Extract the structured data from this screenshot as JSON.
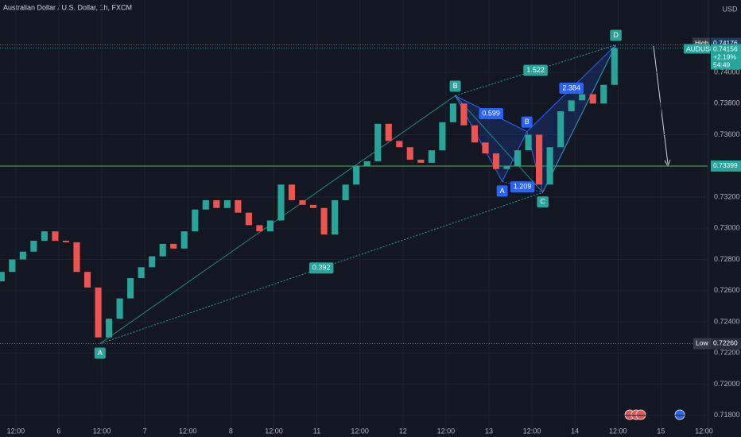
{
  "chart_data": {
    "type": "candlestick",
    "title": "Australian Dollar / U.S. Dollar, 1h, FXCM",
    "x": [
      -4,
      -1,
      2,
      5,
      8,
      11,
      14,
      17,
      20,
      23,
      26,
      29,
      32,
      35,
      38,
      41,
      44,
      47,
      50,
      53,
      56,
      59,
      62,
      65,
      68,
      71,
      74,
      77,
      80,
      83,
      86,
      89,
      92,
      95,
      98,
      101,
      104,
      107,
      110,
      113,
      116,
      119,
      122,
      125,
      128,
      131,
      134,
      137,
      140,
      143,
      146,
      149,
      152,
      155,
      158,
      161,
      164,
      167
    ],
    "open": [
      0.7266,
      0.7272,
      0.728,
      0.7285,
      0.7292,
      0.7298,
      0.7292,
      0.7291,
      0.7272,
      0.7262,
      0.723,
      0.7242,
      0.7255,
      0.7268,
      0.7275,
      0.7282,
      0.729,
      0.7287,
      0.7298,
      0.7312,
      0.7318,
      0.7313,
      0.7318,
      0.731,
      0.7302,
      0.7298,
      0.7305,
      0.7328,
      0.7318,
      0.7315,
      0.7313,
      0.7296,
      0.7318,
      0.7328,
      0.734,
      0.7343,
      0.7367,
      0.7356,
      0.7352,
      0.7344,
      0.7342,
      0.735,
      0.7368,
      0.738,
      0.7366,
      0.7355,
      0.7348,
      0.7338,
      0.734,
      0.735,
      0.736,
      0.7328,
      0.7352,
      0.7375,
      0.7382,
      0.7386,
      0.738,
      0.7392
    ],
    "high": 0.74176,
    "low": {
      "value": 0.7226,
      "label": "0.72260"
    },
    "close": [
      0.7272,
      0.728,
      0.7285,
      0.7292,
      0.7298,
      0.7292,
      0.7291,
      0.7272,
      0.7262,
      0.723,
      0.7242,
      0.7255,
      0.7268,
      0.7275,
      0.7282,
      0.729,
      0.7287,
      0.7298,
      0.7312,
      0.7318,
      0.7313,
      0.7318,
      0.731,
      0.7302,
      0.7298,
      0.7305,
      0.7328,
      0.7318,
      0.7315,
      0.7313,
      0.7296,
      0.7318,
      0.7328,
      0.734,
      0.7343,
      0.7367,
      0.7356,
      0.7352,
      0.7344,
      0.7342,
      0.735,
      0.7368,
      0.738,
      0.7366,
      0.7355,
      0.7348,
      0.7338,
      0.734,
      0.735,
      0.736,
      0.7328,
      0.7352,
      0.7375,
      0.7382,
      0.7386,
      0.738,
      0.7392,
      0.74156
    ],
    "up_color": "#26a69a",
    "down_color": "#ef5350",
    "xlim": [
      -4.4,
      193
    ],
    "xticks": [
      {
        "value": 0,
        "label": "12:00"
      },
      {
        "value": 12,
        "label": "6"
      },
      {
        "value": 24,
        "label": "12:00"
      },
      {
        "value": 36,
        "label": "7"
      },
      {
        "value": 48,
        "label": "12:00"
      },
      {
        "value": 60,
        "label": "8"
      },
      {
        "value": 72,
        "label": "12:00"
      },
      {
        "value": 84,
        "label": "11"
      },
      {
        "value": 96,
        "label": "12:00"
      },
      {
        "value": 108,
        "label": "12"
      },
      {
        "value": 120,
        "label": "12:00"
      },
      {
        "value": 132,
        "label": "13"
      },
      {
        "value": 144,
        "label": "12:00"
      },
      {
        "value": 156,
        "label": "14"
      },
      {
        "value": 168,
        "label": "12:00"
      },
      {
        "value": 180,
        "label": "15"
      },
      {
        "value": 192,
        "label": "12:00"
      }
    ],
    "ylim": [
      0.71712,
      0.74464
    ],
    "yticks": [
      {
        "value": 0.74,
        "label": "0.74000"
      },
      {
        "value": 0.738,
        "label": "0.73800"
      },
      {
        "value": 0.736,
        "label": "0.73600"
      },
      {
        "value": 0.734,
        "label": "0.73400"
      },
      {
        "value": 0.732,
        "label": "0.73200"
      },
      {
        "value": 0.73,
        "label": "0.73000"
      },
      {
        "value": 0.728,
        "label": "0.72800"
      },
      {
        "value": 0.726,
        "label": "0.72600"
      },
      {
        "value": 0.724,
        "label": "0.72400"
      },
      {
        "value": 0.722,
        "label": "0.72200"
      },
      {
        "value": 0.72,
        "label": "0.72000"
      },
      {
        "value": 0.718,
        "label": "0.71800"
      }
    ],
    "grid": true,
    "currency": "USD",
    "symbol": "AUDUSD",
    "change": "+2.19%",
    "countdown": "54:49",
    "high_label": "High",
    "low_label": "Low",
    "last": 0.74156,
    "level": 0.73399,
    "pattern": {
      "points": [
        {
          "label": "A",
          "x": 23.5,
          "y": 0.7226
        },
        {
          "label": "B",
          "x": 122.6,
          "y": 0.7385
        },
        {
          "label": "C",
          "x": 147,
          "y": 0.7323
        },
        {
          "label": "D",
          "x": 167.4,
          "y": 0.74176
        }
      ],
      "inner": [
        {
          "x": 122.6,
          "y": 0.7385
        },
        {
          "label": "A",
          "x": 135.7,
          "y": 0.733
        },
        {
          "label": "B",
          "x": 142.6,
          "y": 0.7362
        },
        {
          "x": 147,
          "y": 0.7323
        },
        {
          "x": 167.4,
          "y": 0.74176
        }
      ],
      "ratios": [
        "1.522",
        "0.392"
      ],
      "inner_ratios": [
        "0.599",
        "1.209",
        "2.384"
      ]
    }
  }
}
